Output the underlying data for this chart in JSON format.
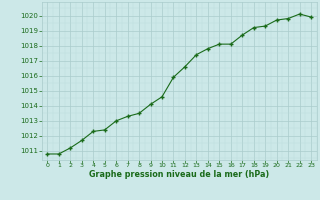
{
  "x": [
    0,
    1,
    2,
    3,
    4,
    5,
    6,
    7,
    8,
    9,
    10,
    11,
    12,
    13,
    14,
    15,
    16,
    17,
    18,
    19,
    20,
    21,
    22,
    23
  ],
  "y": [
    1010.8,
    1010.8,
    1011.2,
    1011.7,
    1012.3,
    1012.4,
    1013.0,
    1013.3,
    1013.5,
    1014.1,
    1014.6,
    1015.9,
    1016.6,
    1017.4,
    1017.8,
    1018.1,
    1018.1,
    1018.7,
    1019.2,
    1019.3,
    1019.7,
    1019.8,
    1020.1,
    1019.9
  ],
  "line_color": "#1a6b1a",
  "marker": "+",
  "bg_color": "#cce8e8",
  "grid_color_major": "#aacccc",
  "grid_color_minor": "#bbdddd",
  "xlabel": "Graphe pression niveau de la mer (hPa)",
  "xlabel_color": "#1a6b1a",
  "tick_color": "#1a6b1a",
  "ytick_min": 1011,
  "ytick_max": 1020,
  "xtick_min": 0,
  "xtick_max": 23,
  "ylim_min": 1010.4,
  "ylim_max": 1020.9,
  "xlim_min": -0.5,
  "xlim_max": 23.5
}
